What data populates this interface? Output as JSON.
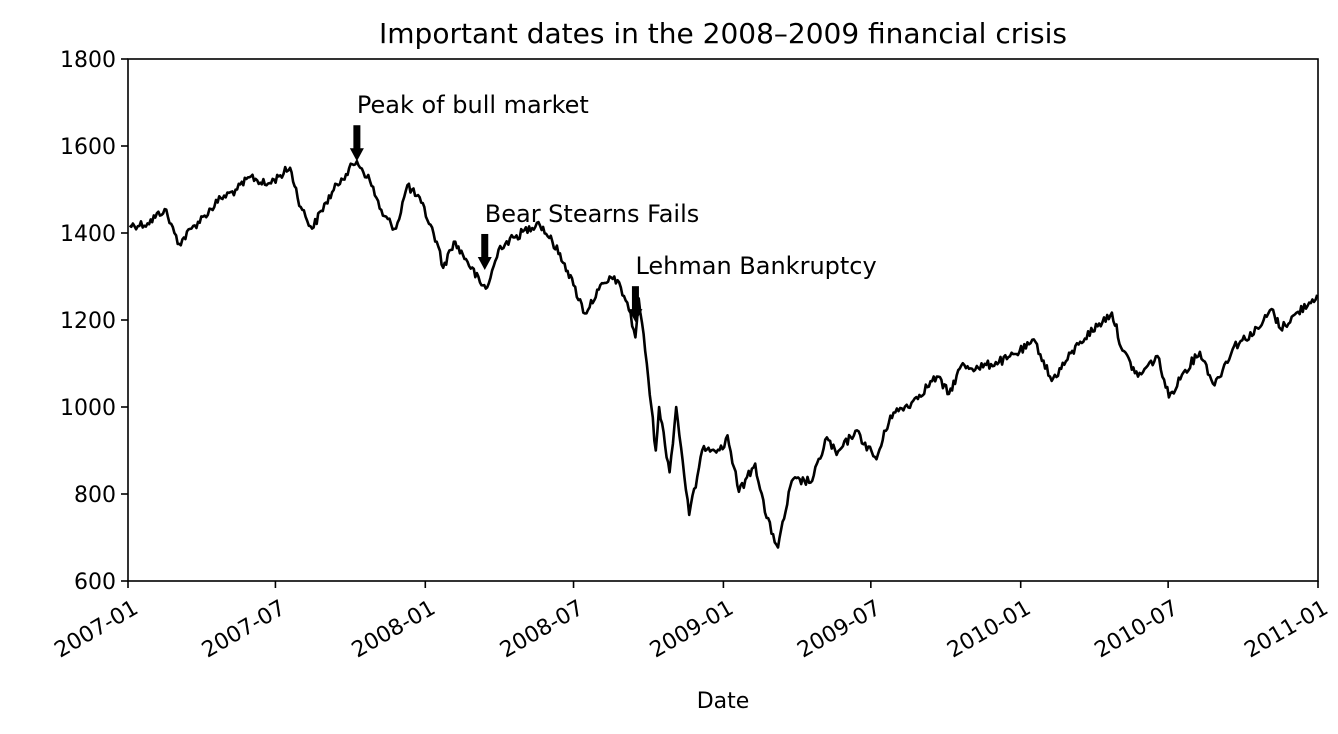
{
  "chart_data": {
    "type": "line",
    "title": "Important dates in the 2008–2009 financial crisis",
    "xlabel": "Date",
    "ylabel": "",
    "xlim": [
      "2007-01-01",
      "2011-01-01"
    ],
    "ylim": [
      600,
      1800
    ],
    "grid": false,
    "x_ticks": [
      "2007-01",
      "2007-07",
      "2008-01",
      "2008-07",
      "2009-01",
      "2009-07",
      "2010-01",
      "2010-07",
      "2011-01"
    ],
    "y_ticks": [
      600,
      800,
      1000,
      1200,
      1400,
      1600,
      1800
    ],
    "line_color": "#000000",
    "series": [
      {
        "points": [
          [
            "2007-01-03",
            1417
          ],
          [
            "2007-01-25",
            1422
          ],
          [
            "2007-02-15",
            1455
          ],
          [
            "2007-02-27",
            1400
          ],
          [
            "2007-03-05",
            1375
          ],
          [
            "2007-03-20",
            1410
          ],
          [
            "2007-04-05",
            1440
          ],
          [
            "2007-04-25",
            1480
          ],
          [
            "2007-05-15",
            1500
          ],
          [
            "2007-06-01",
            1530
          ],
          [
            "2007-06-20",
            1510
          ],
          [
            "2007-07-05",
            1530
          ],
          [
            "2007-07-19",
            1550
          ],
          [
            "2007-08-01",
            1460
          ],
          [
            "2007-08-15",
            1410
          ],
          [
            "2007-09-01",
            1470
          ],
          [
            "2007-09-20",
            1525
          ],
          [
            "2007-10-09",
            1565
          ],
          [
            "2007-10-25",
            1520
          ],
          [
            "2007-11-10",
            1440
          ],
          [
            "2007-11-26",
            1410
          ],
          [
            "2007-12-10",
            1510
          ],
          [
            "2007-12-27",
            1470
          ],
          [
            "2008-01-15",
            1380
          ],
          [
            "2008-01-23",
            1320
          ],
          [
            "2008-02-05",
            1380
          ],
          [
            "2008-02-20",
            1340
          ],
          [
            "2008-03-10",
            1280
          ],
          [
            "2008-03-17",
            1275
          ],
          [
            "2008-04-02",
            1370
          ],
          [
            "2008-04-20",
            1390
          ],
          [
            "2008-05-19",
            1425
          ],
          [
            "2008-06-05",
            1380
          ],
          [
            "2008-06-20",
            1330
          ],
          [
            "2008-07-01",
            1280
          ],
          [
            "2008-07-15",
            1215
          ],
          [
            "2008-08-01",
            1270
          ],
          [
            "2008-08-20",
            1300
          ],
          [
            "2008-09-05",
            1240
          ],
          [
            "2008-09-15",
            1160
          ],
          [
            "2008-09-19",
            1250
          ],
          [
            "2008-09-29",
            1100
          ],
          [
            "2008-10-10",
            900
          ],
          [
            "2008-10-14",
            1000
          ],
          [
            "2008-10-27",
            850
          ],
          [
            "2008-11-04",
            1000
          ],
          [
            "2008-11-20",
            752
          ],
          [
            "2008-12-08",
            910
          ],
          [
            "2008-12-31",
            903
          ],
          [
            "2009-01-06",
            935
          ],
          [
            "2009-01-20",
            805
          ],
          [
            "2009-02-09",
            870
          ],
          [
            "2009-02-23",
            745
          ],
          [
            "2009-03-09",
            677
          ],
          [
            "2009-03-26",
            830
          ],
          [
            "2009-04-20",
            830
          ],
          [
            "2009-05-08",
            930
          ],
          [
            "2009-05-20",
            890
          ],
          [
            "2009-06-12",
            945
          ],
          [
            "2009-07-08",
            880
          ],
          [
            "2009-07-25",
            980
          ],
          [
            "2009-08-20",
            1010
          ],
          [
            "2009-09-20",
            1070
          ],
          [
            "2009-10-05",
            1030
          ],
          [
            "2009-10-20",
            1095
          ],
          [
            "2009-11-10",
            1090
          ],
          [
            "2009-12-15",
            1110
          ],
          [
            "2010-01-19",
            1150
          ],
          [
            "2010-02-08",
            1060
          ],
          [
            "2010-03-15",
            1150
          ],
          [
            "2010-04-23",
            1217
          ],
          [
            "2010-05-06",
            1130
          ],
          [
            "2010-05-25",
            1070
          ],
          [
            "2010-06-18",
            1117
          ],
          [
            "2010-07-02",
            1022
          ],
          [
            "2010-07-20",
            1080
          ],
          [
            "2010-08-09",
            1127
          ],
          [
            "2010-08-27",
            1050
          ],
          [
            "2010-09-20",
            1140
          ],
          [
            "2010-10-20",
            1180
          ],
          [
            "2010-11-05",
            1225
          ],
          [
            "2010-11-16",
            1180
          ],
          [
            "2010-12-31",
            1258
          ]
        ]
      }
    ],
    "annotations": [
      {
        "text": "Peak of bull market",
        "date": "2007-10-09",
        "value": 1565
      },
      {
        "text": "Bear Stearns Fails",
        "date": "2008-03-14",
        "value": 1315
      },
      {
        "text": "Lehman Bankruptcy",
        "date": "2008-09-15",
        "value": 1195
      }
    ]
  }
}
